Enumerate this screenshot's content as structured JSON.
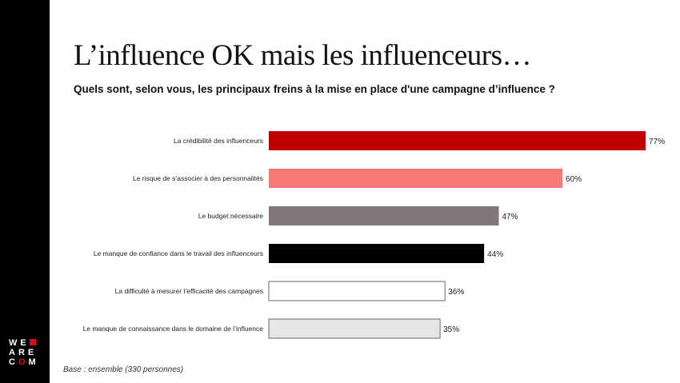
{
  "slide": {
    "title": "L’influence OK mais les influenceurs…",
    "subtitle": "Quels sont, selon vous, les principaux freins à la mise en place d'une campagne d’influence ?",
    "footnote": "Base : ensemble (330 personnes)"
  },
  "logo": {
    "rows": [
      "WE",
      "ARE",
      "COM"
    ],
    "accent_color": "#e30613"
  },
  "chart_data": {
    "type": "bar",
    "orientation": "horizontal",
    "categories": [
      "La crédibilité des influenceurs",
      "Le risque de s’associer à des personnalités",
      "Le budget nécessaire",
      "Le manque de confiance dans le travail des influenceurs",
      "La difficulté à mesurer l’efficacité des campagnes",
      "Le manque de connaissance dans le domaine de l’influence"
    ],
    "values": [
      77,
      60,
      47,
      44,
      36,
      35
    ],
    "value_labels": [
      "77%",
      "60%",
      "47%",
      "44%",
      "36%",
      "35%"
    ],
    "colors": [
      "#c00000",
      "#f87878",
      "#807878",
      "#000000",
      "#ffffff",
      "#e6e6e6"
    ],
    "title": "",
    "xlabel": "",
    "ylabel": "",
    "xlim": [
      0,
      77
    ],
    "grid": false,
    "legend": "none"
  }
}
